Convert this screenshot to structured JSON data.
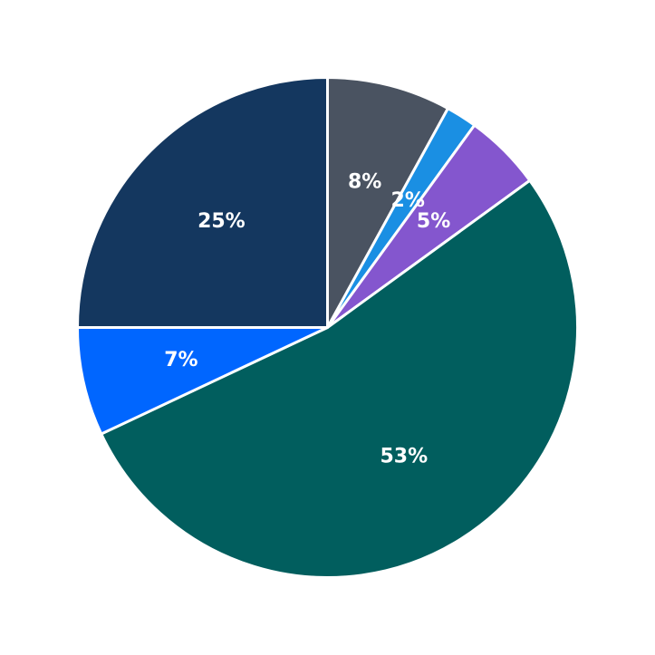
{
  "chart_data": {
    "type": "pie",
    "title": "",
    "start_angle_deg": 90,
    "direction": "clockwise",
    "slices": [
      {
        "label": "",
        "value": 8,
        "display": "8%",
        "color": "#4a5361"
      },
      {
        "label": "",
        "value": 2,
        "display": "2%",
        "color": "#1a8fe3"
      },
      {
        "label": "",
        "value": 5,
        "display": "5%",
        "color": "#8456ce"
      },
      {
        "label": "",
        "value": 53,
        "display": "53%",
        "color": "#015e5e"
      },
      {
        "label": "",
        "value": 7,
        "display": "7%",
        "color": "#0066ff"
      },
      {
        "label": "",
        "value": 25,
        "display": "25%",
        "color": "#14375f"
      }
    ],
    "legend": "none"
  }
}
